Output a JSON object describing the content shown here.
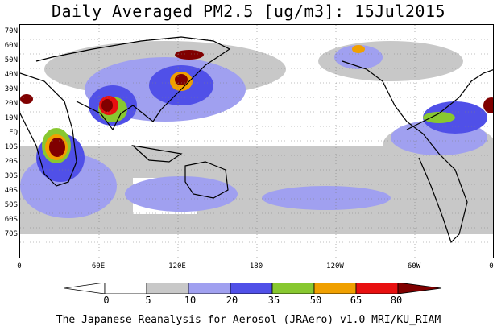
{
  "title": "Daily Averaged PM2.5 [ug/m3]: 15Jul2015",
  "lat_labels": [
    "70N",
    "60N",
    "50N",
    "40N",
    "30N",
    "20N",
    "10N",
    "EQ",
    "10S",
    "20S",
    "30S",
    "40S",
    "50S",
    "60S",
    "70S"
  ],
  "lon_labels": [
    "0",
    "60E",
    "120E",
    "180",
    "120W",
    "60W",
    "0"
  ],
  "colorbar": {
    "labels": [
      "0",
      "5",
      "10",
      "20",
      "35",
      "50",
      "65",
      "80"
    ],
    "colors": [
      "#ffffff",
      "#c8c8c8",
      "#a0a0f0",
      "#5050e8",
      "#88c830",
      "#f0a000",
      "#e81010",
      "#800000"
    ]
  },
  "footer": "The Japanese Reanalysis for Aerosol (JRAero) v1.0 MRI/KU_RIAM"
}
